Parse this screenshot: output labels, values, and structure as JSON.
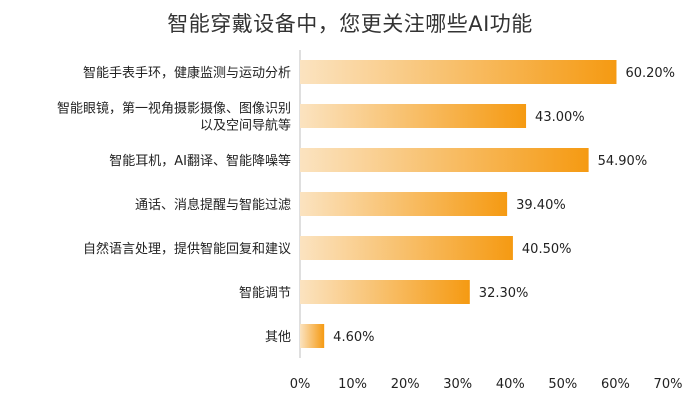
{
  "chart_data": {
    "type": "bar",
    "orientation": "horizontal",
    "title": "智能穿戴设备中，您更关注哪些AI功能",
    "categories": [
      [
        "智能手表手环，健康监测与运动分析"
      ],
      [
        "智能眼镜，第一视角摄影摄像、图像识别",
        "以及空间导航等"
      ],
      [
        "智能耳机，AI翻译、智能降噪等"
      ],
      [
        "通话、消息提醒与智能过滤"
      ],
      [
        "自然语言处理，提供智能回复和建议"
      ],
      [
        "智能调节"
      ],
      [
        "其他"
      ]
    ],
    "values": [
      60.2,
      43.0,
      54.9,
      39.4,
      40.5,
      32.3,
      4.6
    ],
    "value_labels": [
      "60.20%",
      "43.00%",
      "54.90%",
      "39.40%",
      "40.50%",
      "32.30%",
      "4.60%"
    ],
    "xlim": [
      0,
      70
    ],
    "x_ticks": [
      "0%",
      "10%",
      "20%",
      "30%",
      "40%",
      "50%",
      "60%",
      "70%"
    ],
    "grid": false,
    "bar_color_start": "#fbe3c0",
    "bar_color_end": "#f59a12"
  }
}
